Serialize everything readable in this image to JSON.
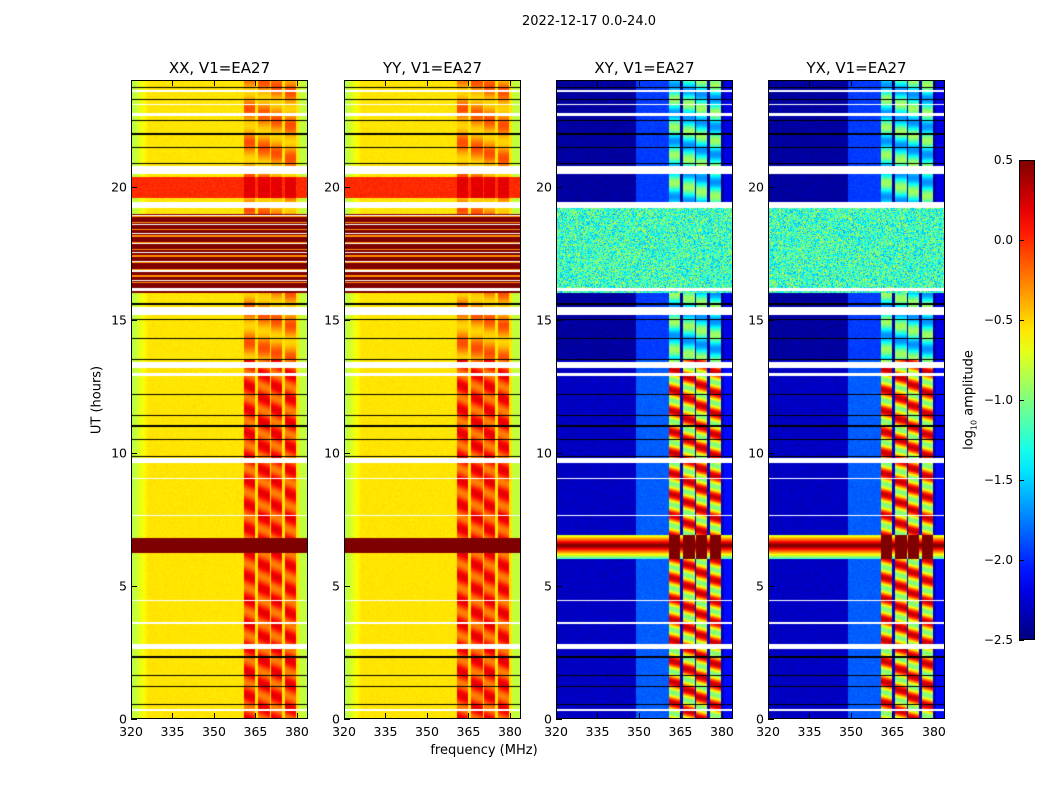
{
  "chart_data": {
    "type": "heatmap",
    "title": "2022-12-17 0.0-24.0",
    "xlabel": "frequency (MHz)",
    "ylabel": "UT (hours)",
    "xlim": [
      320,
      384
    ],
    "ylim": [
      0,
      24
    ],
    "x_ticks": [
      "320",
      "335",
      "350",
      "365",
      "380"
    ],
    "x_tick_values": [
      320,
      335,
      350,
      365,
      380
    ],
    "y_ticks": [
      "0",
      "5",
      "10",
      "15",
      "20"
    ],
    "y_tick_values": [
      0,
      5,
      10,
      15,
      20
    ],
    "colormap": "jet",
    "colorbar": {
      "label_main": "log",
      "label_sub": "10",
      "label_rest": " amplitude",
      "range": [
        -2.5,
        0.5
      ],
      "ticks": [
        "0.5",
        "0.0",
        "−0.5",
        "−1.0",
        "−1.5",
        "−2.0",
        "−2.5"
      ],
      "tick_values": [
        0.5,
        0.0,
        -0.5,
        -1.0,
        -1.5,
        -2.0,
        -2.5
      ]
    },
    "panels": [
      {
        "title": "XX, V1=EA27",
        "kind": "parallel"
      },
      {
        "title": "YY, V1=EA27",
        "kind": "parallel"
      },
      {
        "title": "XY, V1=EA27",
        "kind": "cross"
      },
      {
        "title": "YX, V1=EA27",
        "kind": "cross"
      }
    ],
    "features": {
      "rfi_channels_mhz": [
        [
          361,
          365
        ],
        [
          366,
          370.5
        ],
        [
          371,
          375
        ],
        [
          376,
          380
        ]
      ],
      "cross_hand_band_mhz": [
        349,
        361
      ],
      "parallel_base_log_amp": -0.55,
      "cross_base_log_amp": -2.3,
      "saturated_hours": [
        6.2,
        6.8
      ],
      "parallel_saturated_block_hours": [
        16.0,
        19.0
      ],
      "cross_noisy_block_hours": [
        16.0,
        19.3
      ],
      "parallel_bright_block_hours": [
        19.6,
        20.4
      ],
      "flagged_hours": [
        [
          0.28,
          0.34
        ],
        [
          2.6,
          2.8
        ],
        [
          3.55,
          3.62
        ],
        [
          4.4,
          4.45
        ],
        [
          7.6,
          7.66
        ],
        [
          9.6,
          9.8
        ],
        [
          9.0,
          9.04
        ],
        [
          12.9,
          13.0
        ],
        [
          13.2,
          13.4
        ],
        [
          15.2,
          15.5
        ],
        [
          16.1,
          16.2
        ],
        [
          19.2,
          19.45
        ],
        [
          20.5,
          20.8
        ],
        [
          22.7,
          22.78
        ],
        [
          23.1,
          23.15
        ],
        [
          23.6,
          23.65
        ]
      ],
      "black_line_hours": [
        0.5,
        1.2,
        1.6,
        2.3,
        9.85,
        10.5,
        11.0,
        11.4,
        12.2,
        13.5,
        14.3,
        15.0,
        15.6,
        20.9,
        21.5,
        22.0,
        22.5,
        23.3,
        23.75
      ]
    }
  }
}
